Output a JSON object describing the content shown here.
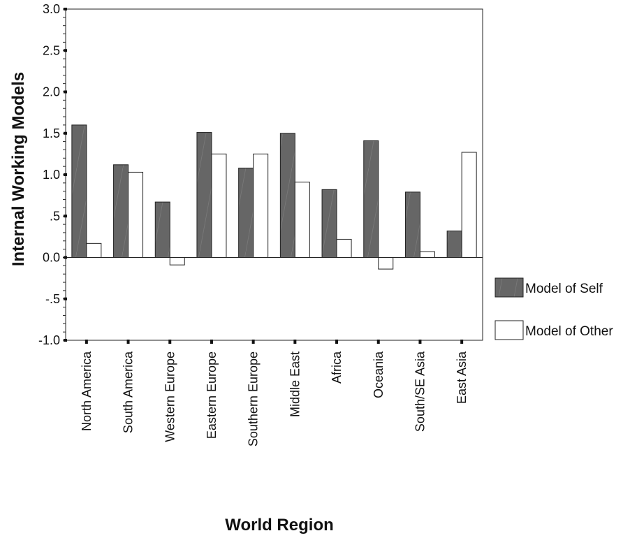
{
  "chart_data": {
    "type": "bar",
    "title": "",
    "xlabel": "World Region",
    "ylabel": "Internal Working Models",
    "categories": [
      "North America",
      "South America",
      "Western Europe",
      "Eastern Europe",
      "Southern Europe",
      "Middle East",
      "Africa",
      "Oceania",
      "South/SE Asia",
      "East Asia"
    ],
    "series": [
      {
        "name": "Model of Self",
        "color": "#666666",
        "values": [
          1.6,
          1.12,
          0.67,
          1.51,
          1.08,
          1.5,
          0.82,
          1.41,
          0.79,
          0.32
        ]
      },
      {
        "name": "Model of Other",
        "color": "#ffffff",
        "values": [
          0.17,
          1.03,
          -0.09,
          1.25,
          1.25,
          0.91,
          0.22,
          -0.14,
          0.07,
          1.27
        ]
      }
    ],
    "ylim": [
      -1.0,
      3.0
    ],
    "yticks": [
      -1.0,
      -0.5,
      0.0,
      0.5,
      1.0,
      1.5,
      2.0,
      2.5,
      3.0
    ],
    "ytick_labels": [
      "-1.0",
      "-.5",
      "0.0",
      ".5",
      "1.0",
      "1.5",
      "2.0",
      "2.5",
      "3.0"
    ],
    "grid": false,
    "legend_position": "right"
  }
}
